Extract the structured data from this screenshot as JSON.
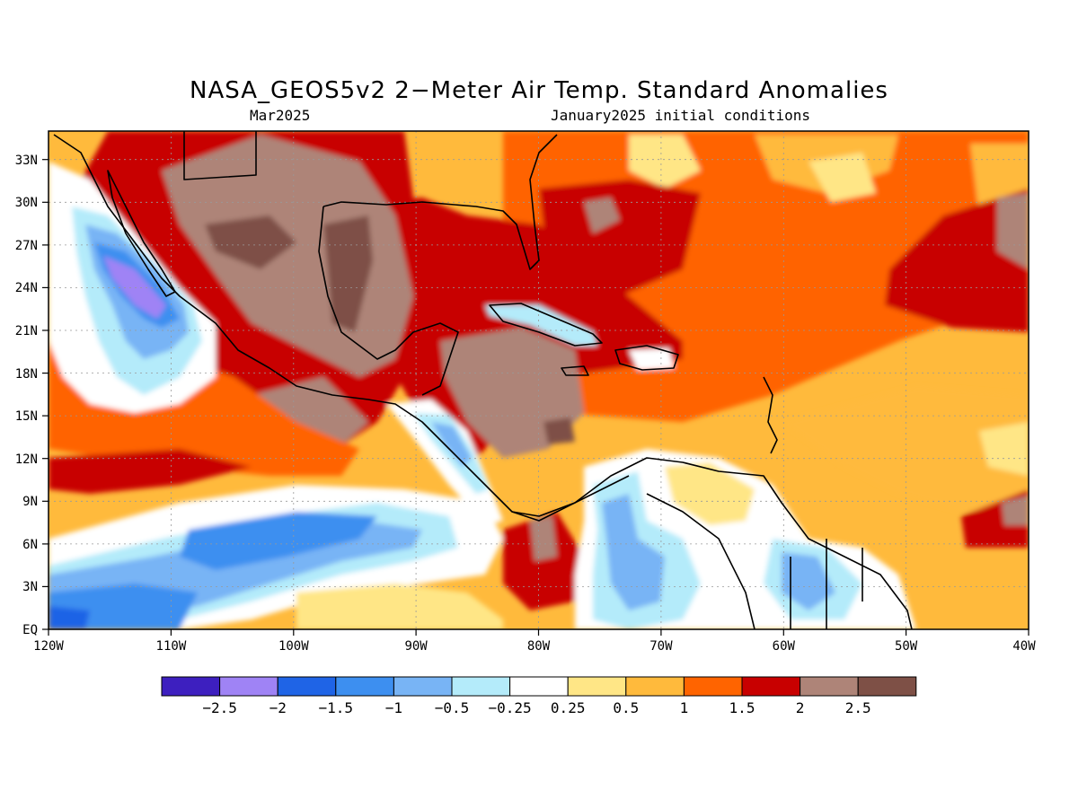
{
  "title": "NASA_GEOS5v2 2−Meter Air Temp. Standard Anomalies",
  "subtitle_left": "Mar2025",
  "subtitle_right": "January2025 initial conditions",
  "lat_ticks": [
    "33N",
    "30N",
    "27N",
    "24N",
    "21N",
    "18N",
    "15N",
    "12N",
    "9N",
    "6N",
    "3N",
    "EQ"
  ],
  "lon_ticks": [
    "120W",
    "110W",
    "100W",
    "90W",
    "80W",
    "70W",
    "60W",
    "50W",
    "40W"
  ],
  "map_extent": {
    "lon": [
      -120,
      -40
    ],
    "lat": [
      0,
      35
    ]
  },
  "legend": {
    "colors": [
      "#3d1fbf",
      "#9f83f5",
      "#1f64e6",
      "#3d8ff0",
      "#78b4f5",
      "#b4ebfa",
      "#ffffff",
      "#ffe686",
      "#ffba3c",
      "#ff6400",
      "#c80000",
      "#ae8478",
      "#7e5046"
    ],
    "labels": [
      "−2.5",
      "−2",
      "−1.5",
      "−1",
      "−0.5",
      "−0.25",
      "0.25",
      "0.5",
      "1",
      "1.5",
      "2",
      "2.5"
    ]
  }
}
